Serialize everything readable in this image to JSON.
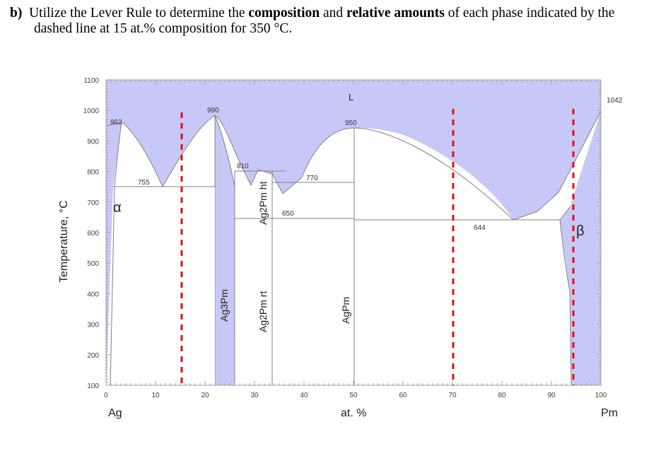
{
  "question": {
    "label": "b)",
    "text_1": "Utilize the Lever Rule to determine the ",
    "bold_1": "composition",
    "text_2": " and ",
    "bold_2": "relative amounts",
    "text_3": " of each phase indicated by the",
    "line_2": "dashed line at 15 at.% composition for 350 °C."
  },
  "diagram": {
    "y_axis_label": "Temperature, °C",
    "x_axis_label": "at. %",
    "left_element": "Ag",
    "right_element": "Pm",
    "y_ticks": [
      "1100",
      "1000",
      "900",
      "800",
      "700",
      "600",
      "500",
      "400",
      "300",
      "200",
      "100"
    ],
    "x_ticks": [
      "0",
      "10",
      "20",
      "30",
      "40",
      "50",
      "60",
      "70",
      "80",
      "90",
      "100"
    ],
    "temperature_labels": [
      "962",
      "990",
      "810",
      "770",
      "950",
      "755",
      "650",
      "644",
      "1042"
    ],
    "phase_labels": [
      "L",
      "α",
      "β",
      "Ag3Pm",
      "Ag2Pm ht",
      "Ag2Pm rt",
      "AgPm"
    ],
    "colors": {
      "liquid_fill": "#c8c8f8",
      "dashed_line": "#e01010",
      "phase_boundary": "#808080"
    }
  },
  "chart_data": {
    "type": "phase_diagram",
    "xlabel": "at. %",
    "ylabel": "Temperature, °C",
    "xlim": [
      0,
      100
    ],
    "ylim": [
      100,
      1100
    ],
    "components": [
      "Ag",
      "Pm"
    ],
    "melting_points": {
      "Ag": 962,
      "Pm": 1042
    },
    "invariant_temperatures": [
      {
        "label": "755",
        "T": 755,
        "x_range": [
          4,
          21
        ]
      },
      {
        "label": "990",
        "T": 990,
        "x": 21
      },
      {
        "label": "810",
        "T": 810,
        "x_range": [
          27,
          35
        ]
      },
      {
        "label": "770",
        "T": 770,
        "x_range": [
          33,
          50
        ]
      },
      {
        "label": "650",
        "T": 650,
        "x_range": [
          25,
          50
        ]
      },
      {
        "label": "950",
        "T": 950,
        "x": 50
      },
      {
        "label": "644",
        "T": 644,
        "x_range": [
          50,
          94
        ]
      }
    ],
    "intermediate_phases": [
      {
        "name": "Ag3Pm",
        "x_range": [
          21,
          25
        ]
      },
      {
        "name": "Ag2Pm ht",
        "x": 33
      },
      {
        "name": "Ag2Pm rt",
        "x": 33
      },
      {
        "name": "AgPm",
        "x": 50
      }
    ],
    "dashed_lines_at": [
      15,
      70,
      94
    ]
  }
}
